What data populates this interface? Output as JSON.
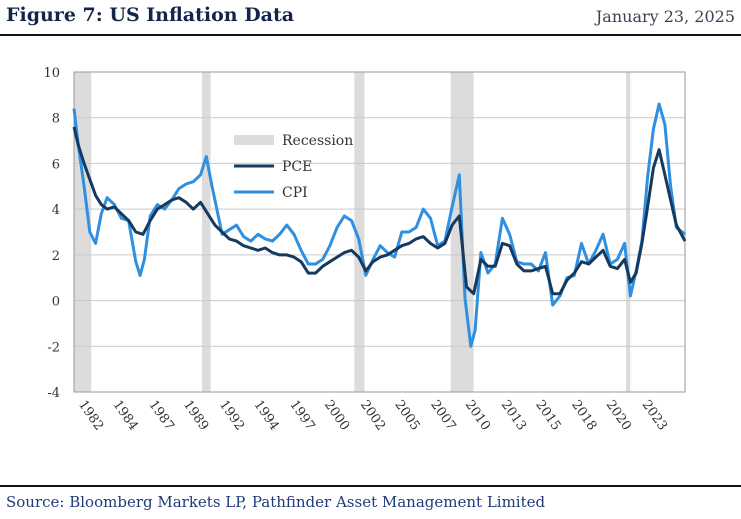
{
  "header": {
    "title": "Figure 7: US Inflation Data",
    "date": "January 23, 2025"
  },
  "footer": {
    "source": "Source: Bloomberg Markets LP, Pathfinder Asset Management Limited"
  },
  "colors": {
    "pce": "#163a5f",
    "cpi": "#2f8fe0",
    "recession": "#dcdcdc"
  },
  "chart_data": {
    "type": "line",
    "title": "Figure 7: US Inflation Data",
    "xlabel": "",
    "ylabel": "",
    "xlim": [
      1981.7,
      2024.2
    ],
    "ylim": [
      -4,
      10
    ],
    "yticks": [
      10,
      8,
      6,
      4,
      2,
      0,
      -2,
      -4
    ],
    "ytick_labels": [
      "10",
      "8",
      "6",
      "4",
      "2",
      "0",
      "-2",
      "-4"
    ],
    "xtick_labels": [
      "1982",
      "1984",
      "1987",
      "1989",
      "1992",
      "1994",
      "1997",
      "2000",
      "2002",
      "2005",
      "2007",
      "2010",
      "2013",
      "2015",
      "2018",
      "2020",
      "2023"
    ],
    "xtick_values": [
      1982.0,
      1984.4,
      1986.9,
      1989.3,
      1991.8,
      1994.2,
      1996.7,
      1999.1,
      2001.6,
      2004.0,
      2006.5,
      2008.9,
      2011.4,
      2013.8,
      2016.3,
      2018.7,
      2021.2
    ],
    "grid": true,
    "legend_position": "upper-left",
    "legend": [
      "Recession",
      "PCE",
      "CPI"
    ],
    "recessions": [
      {
        "start": 1981.7,
        "end": 1982.9
      },
      {
        "start": 1990.6,
        "end": 1991.2
      },
      {
        "start": 2001.2,
        "end": 2001.9
      },
      {
        "start": 2007.9,
        "end": 2009.5
      },
      {
        "start": 2020.1,
        "end": 2020.4
      }
    ],
    "series": [
      {
        "name": "PCE",
        "color": "#163a5f",
        "x": [
          1981.7,
          1982.0,
          1982.4,
          1982.8,
          1983.2,
          1983.6,
          1984.0,
          1984.5,
          1985.0,
          1985.5,
          1986.0,
          1986.5,
          1987.0,
          1987.5,
          1988.0,
          1988.5,
          1989.0,
          1989.5,
          1990.0,
          1990.5,
          1991.0,
          1991.5,
          1992.0,
          1992.5,
          1993.0,
          1993.5,
          1994.0,
          1994.5,
          1995.0,
          1995.5,
          1996.0,
          1996.5,
          1997.0,
          1997.5,
          1998.0,
          1998.5,
          1999.0,
          1999.5,
          2000.0,
          2000.5,
          2001.0,
          2001.5,
          2002.0,
          2002.5,
          2003.0,
          2003.5,
          2004.0,
          2004.5,
          2005.0,
          2005.5,
          2006.0,
          2006.5,
          2007.0,
          2007.5,
          2008.0,
          2008.5,
          2009.0,
          2009.5,
          2010.0,
          2010.5,
          2011.0,
          2011.5,
          2012.0,
          2012.5,
          2013.0,
          2013.5,
          2014.0,
          2014.5,
          2015.0,
          2015.5,
          2016.0,
          2016.5,
          2017.0,
          2017.5,
          2018.0,
          2018.5,
          2019.0,
          2019.5,
          2020.0,
          2020.4,
          2020.8,
          2021.2,
          2021.6,
          2022.0,
          2022.4,
          2022.8,
          2023.2,
          2023.6,
          2024.2
        ],
        "values": [
          7.6,
          6.8,
          6.0,
          5.3,
          4.6,
          4.2,
          4.0,
          4.1,
          3.8,
          3.5,
          3.0,
          2.9,
          3.5,
          4.0,
          4.2,
          4.4,
          4.5,
          4.3,
          4.0,
          4.3,
          3.8,
          3.3,
          3.0,
          2.7,
          2.6,
          2.4,
          2.3,
          2.2,
          2.3,
          2.1,
          2.0,
          2.0,
          1.9,
          1.7,
          1.2,
          1.2,
          1.5,
          1.7,
          1.9,
          2.1,
          2.2,
          1.9,
          1.3,
          1.7,
          1.9,
          2.0,
          2.2,
          2.4,
          2.5,
          2.7,
          2.8,
          2.5,
          2.3,
          2.5,
          3.3,
          3.7,
          0.6,
          0.3,
          1.8,
          1.5,
          1.5,
          2.5,
          2.4,
          1.6,
          1.3,
          1.3,
          1.4,
          1.5,
          0.3,
          0.3,
          0.9,
          1.2,
          1.7,
          1.6,
          1.9,
          2.2,
          1.5,
          1.4,
          1.8,
          0.8,
          1.2,
          2.5,
          4.1,
          5.8,
          6.6,
          5.5,
          4.4,
          3.3,
          2.6
        ]
      },
      {
        "name": "CPI",
        "color": "#2f8fe0",
        "x": [
          1981.7,
          1982.0,
          1982.4,
          1982.8,
          1983.2,
          1983.6,
          1984.0,
          1984.5,
          1985.0,
          1985.5,
          1986.0,
          1986.3,
          1986.6,
          1987.0,
          1987.5,
          1988.0,
          1988.5,
          1989.0,
          1989.5,
          1990.0,
          1990.5,
          1990.9,
          1991.3,
          1991.7,
          1992.0,
          1992.5,
          1993.0,
          1993.5,
          1994.0,
          1994.5,
          1995.0,
          1995.5,
          1996.0,
          1996.5,
          1997.0,
          1997.5,
          1998.0,
          1998.5,
          1999.0,
          1999.5,
          2000.0,
          2000.5,
          2001.0,
          2001.5,
          2002.0,
          2002.5,
          2003.0,
          2003.5,
          2004.0,
          2004.5,
          2005.0,
          2005.5,
          2006.0,
          2006.5,
          2007.0,
          2007.5,
          2008.0,
          2008.5,
          2008.9,
          2009.3,
          2009.6,
          2010.0,
          2010.5,
          2011.0,
          2011.5,
          2012.0,
          2012.5,
          2013.0,
          2013.5,
          2014.0,
          2014.5,
          2015.0,
          2015.5,
          2016.0,
          2016.5,
          2017.0,
          2017.5,
          2018.0,
          2018.5,
          2019.0,
          2019.5,
          2020.0,
          2020.4,
          2020.8,
          2021.2,
          2021.6,
          2022.0,
          2022.4,
          2022.8,
          2023.2,
          2023.6,
          2024.2
        ],
        "values": [
          8.4,
          6.8,
          5.0,
          3.0,
          2.5,
          3.8,
          4.5,
          4.2,
          3.6,
          3.5,
          1.7,
          1.1,
          1.8,
          3.7,
          4.2,
          4.0,
          4.4,
          4.9,
          5.1,
          5.2,
          5.5,
          6.3,
          5.0,
          3.8,
          2.9,
          3.1,
          3.3,
          2.8,
          2.6,
          2.9,
          2.7,
          2.6,
          2.9,
          3.3,
          2.9,
          2.2,
          1.6,
          1.6,
          1.8,
          2.4,
          3.2,
          3.7,
          3.5,
          2.7,
          1.1,
          1.8,
          2.4,
          2.1,
          1.9,
          3.0,
          3.0,
          3.2,
          4.0,
          3.6,
          2.4,
          2.6,
          4.1,
          5.5,
          0.1,
          -2.0,
          -1.3,
          2.1,
          1.2,
          1.6,
          3.6,
          2.9,
          1.7,
          1.6,
          1.6,
          1.3,
          2.1,
          -0.2,
          0.2,
          1.0,
          1.1,
          2.5,
          1.6,
          2.2,
          2.9,
          1.6,
          1.8,
          2.5,
          0.2,
          1.3,
          2.6,
          5.4,
          7.5,
          8.6,
          7.7,
          5.0,
          3.2,
          2.9
        ]
      }
    ]
  }
}
